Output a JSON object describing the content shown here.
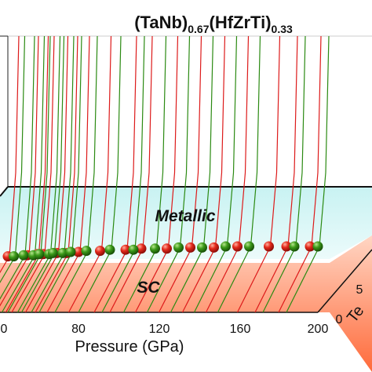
{
  "chart_data": {
    "type": "3d-line-scatter",
    "title_parts": [
      {
        "text": "(TaNb)",
        "sub": false
      },
      {
        "text": "0.67",
        "sub": true
      },
      {
        "text": "(HfZrTi)",
        "sub": false
      },
      {
        "text": "0.33",
        "sub": true
      }
    ],
    "xlabel": "Pressure (GPa)",
    "x_ticks": [
      "0",
      "80",
      "120",
      "160",
      "200"
    ],
    "x_tick_values": [
      0,
      80,
      120,
      160,
      200
    ],
    "xlim": [
      40,
      200
    ],
    "zlabel": "Te",
    "z_ticks": [
      "0",
      "5"
    ],
    "z_tick_values": [
      0,
      5
    ],
    "zlim": [
      0,
      10
    ],
    "regions": [
      {
        "label": "Metallic",
        "color": "#c8f2f2"
      },
      {
        "label": "SC",
        "color": "#ff7a50"
      }
    ],
    "colors": {
      "red": "#dd1a1a",
      "green": "#2b8a12"
    },
    "series": [
      {
        "color": "red",
        "pressure": [
          42,
          52,
          57,
          60,
          67,
          72,
          78,
          89,
          102,
          110,
          123,
          135,
          147,
          159,
          175,
          184,
          196
        ],
        "Tc": [
          6.1,
          6.2,
          6.3,
          6.3,
          6.4,
          6.4,
          6.5,
          6.6,
          6.7,
          6.8,
          6.8,
          6.9,
          6.9,
          7.0,
          7.0,
          7.0,
          7.0
        ]
      },
      {
        "color": "green",
        "pressure": [
          45,
          50,
          55,
          58,
          63,
          65,
          70,
          74,
          82,
          94,
          106,
          117,
          129,
          141,
          153,
          165,
          188,
          200
        ],
        "Tc": [
          6.1,
          6.2,
          6.2,
          6.3,
          6.3,
          6.4,
          6.4,
          6.5,
          6.6,
          6.7,
          6.7,
          6.8,
          6.9,
          6.9,
          7.0,
          7.0,
          7.0,
          7.0
        ]
      }
    ]
  }
}
